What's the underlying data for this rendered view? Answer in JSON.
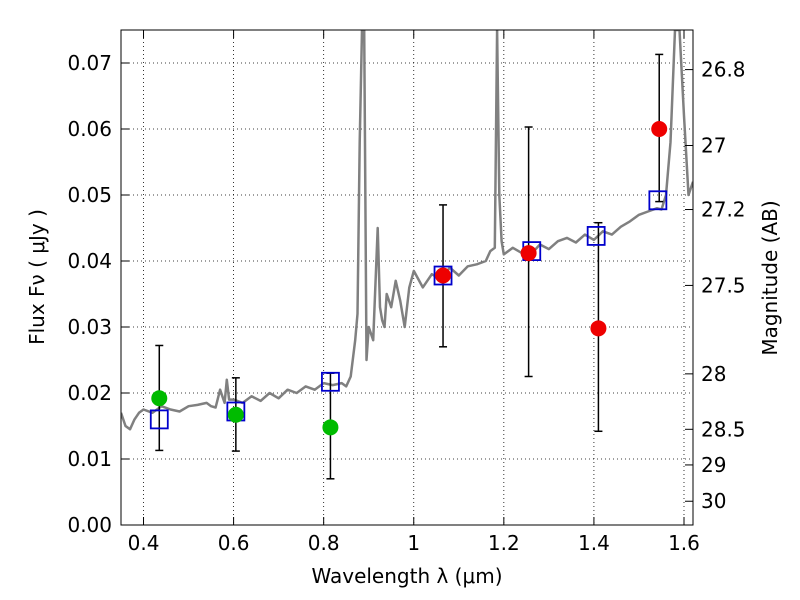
{
  "chart_data": {
    "type": "scatter",
    "xlabel": "Wavelength  λ (μm)",
    "ylabel": "Flux  Fν  ( μJy )",
    "ylabel_right": "Magnitude (AB)",
    "xlim": [
      0.35,
      1.62
    ],
    "ylim": [
      0.0,
      0.075
    ],
    "grid": true,
    "x_ticks": [
      0.4,
      0.6,
      0.8,
      1.0,
      1.2,
      1.4,
      1.6
    ],
    "x_tick_labels": [
      "0.4",
      "0.6",
      "0.8",
      "1",
      "1.2",
      "1.4",
      "1.6"
    ],
    "y_ticks": [
      0.0,
      0.01,
      0.02,
      0.03,
      0.04,
      0.05,
      0.06,
      0.07
    ],
    "y_tick_labels": [
      "0.00",
      "0.01",
      "0.02",
      "0.03",
      "0.04",
      "0.05",
      "0.06",
      "0.07"
    ],
    "right_ticks": [
      {
        "label": "26.8",
        "flux": 0.069
      },
      {
        "label": "27",
        "flux": 0.0575
      },
      {
        "label": "27.2",
        "flux": 0.0478
      },
      {
        "label": "27.5",
        "flux": 0.0363
      },
      {
        "label": "28",
        "flux": 0.0229
      },
      {
        "label": "28.5",
        "flux": 0.0145
      },
      {
        "label": "29",
        "flux": 0.0091
      },
      {
        "label": "30",
        "flux": 0.0036
      }
    ],
    "colors": {
      "spectrum": "#808080",
      "green": "#00bb00",
      "red": "#ee0000",
      "model": "#0000cc",
      "errorbar": "#000000"
    },
    "spectrum": {
      "name": "model spectrum",
      "x": [
        0.35,
        0.36,
        0.37,
        0.38,
        0.39,
        0.4,
        0.42,
        0.44,
        0.46,
        0.48,
        0.5,
        0.52,
        0.54,
        0.55,
        0.56,
        0.57,
        0.58,
        0.585,
        0.59,
        0.6,
        0.62,
        0.64,
        0.66,
        0.68,
        0.7,
        0.72,
        0.74,
        0.76,
        0.78,
        0.8,
        0.82,
        0.84,
        0.85,
        0.86,
        0.87,
        0.875,
        0.88,
        0.885,
        0.89,
        0.895,
        0.9,
        0.91,
        0.92,
        0.925,
        0.93,
        0.935,
        0.94,
        0.95,
        0.96,
        0.97,
        0.98,
        0.99,
        1.0,
        1.02,
        1.04,
        1.06,
        1.08,
        1.1,
        1.12,
        1.14,
        1.16,
        1.17,
        1.18,
        1.185,
        1.19,
        1.195,
        1.2,
        1.22,
        1.24,
        1.26,
        1.28,
        1.3,
        1.32,
        1.34,
        1.36,
        1.38,
        1.4,
        1.42,
        1.44,
        1.46,
        1.48,
        1.5,
        1.52,
        1.54,
        1.55,
        1.56,
        1.57,
        1.58,
        1.59,
        1.6,
        1.61,
        1.62
      ],
      "y": [
        0.017,
        0.015,
        0.0145,
        0.016,
        0.017,
        0.0175,
        0.017,
        0.018,
        0.0175,
        0.0172,
        0.018,
        0.0182,
        0.0185,
        0.018,
        0.0178,
        0.0205,
        0.0185,
        0.022,
        0.019,
        0.019,
        0.0185,
        0.0195,
        0.0188,
        0.02,
        0.0192,
        0.0205,
        0.02,
        0.021,
        0.0205,
        0.0215,
        0.0212,
        0.0215,
        0.021,
        0.0225,
        0.028,
        0.032,
        0.058,
        0.075,
        0.075,
        0.025,
        0.03,
        0.028,
        0.045,
        0.033,
        0.031,
        0.03,
        0.035,
        0.033,
        0.037,
        0.034,
        0.03,
        0.036,
        0.0385,
        0.036,
        0.038,
        0.0372,
        0.039,
        0.0378,
        0.0392,
        0.0395,
        0.04,
        0.0415,
        0.042,
        0.075,
        0.05,
        0.043,
        0.041,
        0.042,
        0.0412,
        0.041,
        0.0425,
        0.0418,
        0.043,
        0.0435,
        0.0428,
        0.044,
        0.0432,
        0.0445,
        0.044,
        0.0452,
        0.046,
        0.047,
        0.0475,
        0.048,
        0.0478,
        0.05,
        0.058,
        0.075,
        0.075,
        0.062,
        0.05,
        0.052
      ]
    },
    "series": [
      {
        "name": "green photometry",
        "marker": "circle",
        "color": "green",
        "points": [
          {
            "x": 0.435,
            "y": 0.0192,
            "ylo": 0.0113,
            "yhi": 0.0272
          },
          {
            "x": 0.605,
            "y": 0.0167,
            "ylo": 0.0112,
            "yhi": 0.0223
          },
          {
            "x": 0.815,
            "y": 0.0148,
            "ylo": 0.007,
            "yhi": 0.023
          }
        ]
      },
      {
        "name": "red photometry",
        "marker": "circle",
        "color": "red",
        "points": [
          {
            "x": 1.065,
            "y": 0.0378,
            "ylo": 0.027,
            "yhi": 0.0485
          },
          {
            "x": 1.255,
            "y": 0.0412,
            "ylo": 0.0225,
            "yhi": 0.0603
          },
          {
            "x": 1.41,
            "y": 0.0298,
            "ylo": 0.0142,
            "yhi": 0.0458
          },
          {
            "x": 1.545,
            "y": 0.06,
            "ylo": 0.049,
            "yhi": 0.0713
          }
        ]
      },
      {
        "name": "model photometry",
        "marker": "square",
        "color": "model",
        "points": [
          {
            "x": 0.435,
            "y": 0.016
          },
          {
            "x": 0.605,
            "y": 0.0172
          },
          {
            "x": 0.815,
            "y": 0.0217
          },
          {
            "x": 1.065,
            "y": 0.0378
          },
          {
            "x": 1.262,
            "y": 0.0415
          },
          {
            "x": 1.405,
            "y": 0.0438
          },
          {
            "x": 1.542,
            "y": 0.0492
          }
        ]
      }
    ]
  }
}
